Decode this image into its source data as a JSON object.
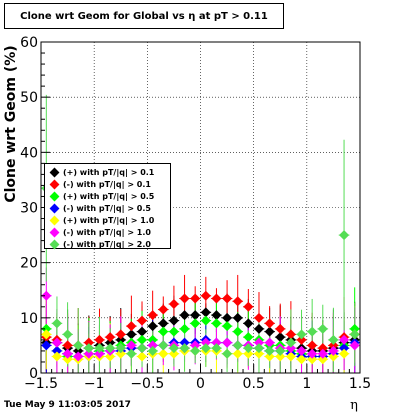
{
  "title": "Clone wrt Geom for Global vs  η at pT > 0.11",
  "footer": {
    "datestamp": "Tue May  9 11:03:05 2017"
  },
  "chart_data": {
    "type": "scatter",
    "xlabel": "η",
    "ylabel": "Clone wrt Geom (%)",
    "xlim": [
      -1.5,
      1.5
    ],
    "ylim": [
      0,
      60
    ],
    "x_ticks": [
      "−1.5",
      "−1",
      "−0.5",
      "0",
      "0.5",
      "1",
      "1.5"
    ],
    "y_ticks": [
      "0",
      "10",
      "20",
      "30",
      "40",
      "50",
      "60"
    ],
    "grid": true,
    "legend_position": "center-left",
    "x": [
      -1.45,
      -1.35,
      -1.25,
      -1.15,
      -1.05,
      -0.95,
      -0.85,
      -0.75,
      -0.65,
      -0.55,
      -0.45,
      -0.35,
      -0.25,
      -0.15,
      -0.05,
      0.05,
      0.15,
      0.25,
      0.35,
      0.45,
      0.55,
      0.65,
      0.75,
      0.85,
      0.95,
      1.05,
      1.15,
      1.25,
      1.35,
      1.45
    ],
    "series": [
      {
        "name": "(+) with pT/|q| > 0.1",
        "color": "#000000",
        "values": [
          5.5,
          5.5,
          4.5,
          4.0,
          4.5,
          5.0,
          5.5,
          6.0,
          7.0,
          7.5,
          8.5,
          9.0,
          9.5,
          10.5,
          10.5,
          11.0,
          10.5,
          10.0,
          10.0,
          9.0,
          8.0,
          7.5,
          6.5,
          6.0,
          4.5,
          4.0,
          4.0,
          4.5,
          5.5,
          6.0
        ]
      },
      {
        "name": "(-) with pT/|q| > 0.1",
        "color": "#ff0000",
        "values": [
          6.5,
          6.0,
          5.0,
          5.0,
          5.5,
          6.0,
          6.5,
          7.0,
          8.5,
          9.5,
          10.5,
          11.5,
          12.5,
          13.5,
          13.5,
          14.0,
          13.5,
          13.5,
          13.0,
          12.0,
          10.0,
          9.0,
          8.0,
          7.0,
          6.0,
          5.0,
          4.5,
          5.0,
          6.5,
          7.0
        ]
      },
      {
        "name": "(+) with pT/|q| > 0.5",
        "color": "#00ff00",
        "values": [
          8.0,
          4.0,
          3.0,
          3.0,
          3.5,
          4.0,
          4.0,
          5.0,
          5.5,
          6.0,
          6.0,
          7.5,
          7.5,
          8.0,
          9.0,
          9.5,
          9.0,
          8.5,
          7.5,
          6.5,
          6.0,
          5.0,
          5.0,
          4.0,
          3.5,
          3.0,
          3.0,
          3.5,
          5.0,
          8.0
        ]
      },
      {
        "name": "(-) with pT/|q| > 0.5",
        "color": "#0000ff",
        "values": [
          5.0,
          4.0,
          3.5,
          3.0,
          3.0,
          3.5,
          4.0,
          4.0,
          4.5,
          4.5,
          5.0,
          5.0,
          5.5,
          5.5,
          5.5,
          6.0,
          5.5,
          5.5,
          5.0,
          5.0,
          4.5,
          4.0,
          4.0,
          3.5,
          3.0,
          3.0,
          3.0,
          3.5,
          4.5,
          5.5
        ]
      },
      {
        "name": "(+) with pT/|q| > 1.0",
        "color": "#ffff00",
        "values": [
          7.0,
          3.0,
          2.5,
          2.5,
          3.0,
          3.0,
          3.0,
          3.5,
          3.5,
          3.0,
          3.5,
          3.5,
          3.5,
          4.0,
          4.0,
          4.0,
          4.0,
          3.5,
          3.5,
          3.5,
          3.5,
          3.0,
          3.0,
          3.0,
          2.5,
          2.5,
          2.5,
          3.0,
          3.5,
          7.0
        ]
      },
      {
        "name": "(-) with pT/|q| > 1.0",
        "color": "#ff00ff",
        "values": [
          14.0,
          5.5,
          3.5,
          3.0,
          3.5,
          3.5,
          4.0,
          4.5,
          5.0,
          4.5,
          5.0,
          5.0,
          5.0,
          4.5,
          5.0,
          5.5,
          5.5,
          5.5,
          5.0,
          5.0,
          5.5,
          5.5,
          4.5,
          4.5,
          4.0,
          3.5,
          3.5,
          4.0,
          6.0,
          5.0
        ]
      },
      {
        "name": "(-) with pT/|q| > 2.0",
        "color": "#55dd55",
        "values": [
          33.5,
          9.0,
          7.0,
          5.0,
          4.5,
          4.5,
          4.5,
          4.5,
          3.5,
          4.5,
          4.0,
          5.0,
          4.5,
          4.5,
          4.0,
          4.5,
          4.5,
          3.5,
          5.0,
          4.5,
          4.5,
          4.0,
          4.0,
          5.5,
          7.0,
          7.5,
          8.0,
          6.0,
          25.0,
          7.0
        ]
      }
    ]
  }
}
